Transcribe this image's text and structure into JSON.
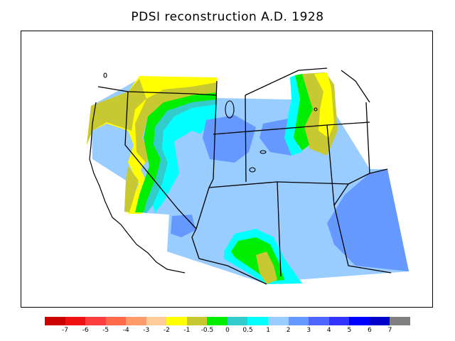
{
  "title": "PDSI reconstruction A.D. 1928",
  "legend": {
    "colors": [
      "#cc0000",
      "#ee1111",
      "#ff3f3f",
      "#ff6a4a",
      "#ff9a6a",
      "#ffcc99",
      "#ffff00",
      "#c8c832",
      "#00ee00",
      "#33cccc",
      "#00ffff",
      "#99ccff",
      "#6699ff",
      "#4c66ff",
      "#3333ff",
      "#0000ff",
      "#0000cc",
      "#808080"
    ],
    "labels": [
      "-7",
      "-6",
      "-5",
      "-4",
      "-3",
      "-2",
      "-1",
      "-0.5",
      "0",
      "0.5",
      "1",
      "2",
      "3",
      "4",
      "5",
      "6",
      "7"
    ]
  }
}
